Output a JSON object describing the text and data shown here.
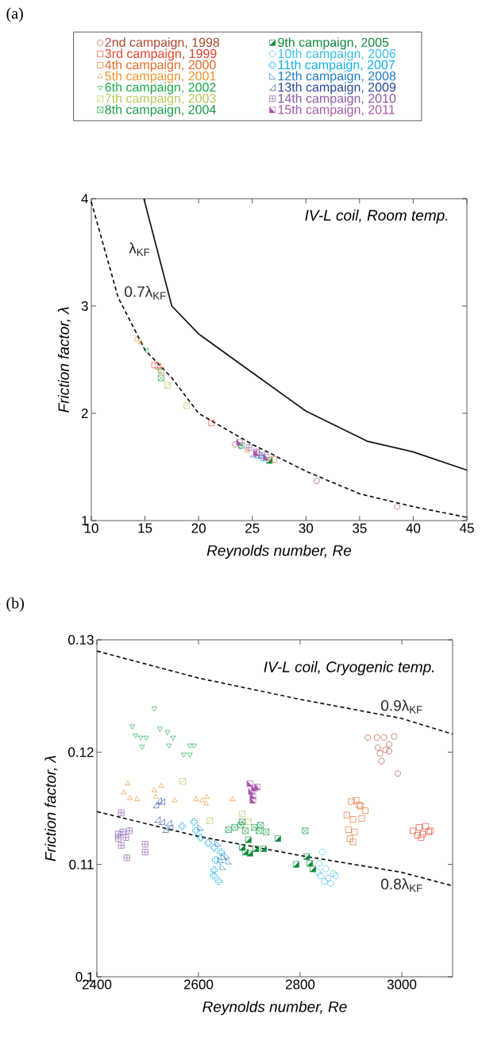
{
  "chart_data": [
    {
      "type": "scatter",
      "title": "(a)",
      "xlabel": "Reynolds number, Re",
      "ylabel": "Friction factor, λ",
      "annotations": [
        "IV-L coil, Room temp."
      ],
      "xlim": [
        10,
        45
      ],
      "ylim": [
        1,
        4
      ],
      "xticks": [
        10,
        15,
        20,
        25,
        30,
        35,
        40,
        45
      ],
      "yticks": [
        1,
        2,
        3,
        4
      ],
      "legend": "top",
      "series": [
        {
          "name": "2nd campaign, 1998",
          "color": "#a8452c",
          "marker": "circle",
          "x": [
            23.4,
            31.0,
            38.5
          ],
          "values": [
            1.71,
            1.37,
            1.13
          ]
        },
        {
          "name": "3rd campaign, 1999",
          "color": "#e0452a",
          "marker": "square",
          "x": [
            15.9,
            16.2,
            21.2
          ],
          "values": [
            2.45,
            2.44,
            1.91
          ]
        },
        {
          "name": "4th campaign, 2000",
          "color": "#e06c2a",
          "marker": "square",
          "x": [
            16.5,
            27.0
          ],
          "values": [
            2.4,
            1.57
          ]
        },
        {
          "name": "5th campaign, 2001",
          "color": "#f0922b",
          "marker": "triangle",
          "x": [
            14.2,
            14.6,
            24.5
          ],
          "values": [
            2.69,
            2.66,
            1.65
          ]
        },
        {
          "name": "6th campaign, 2002",
          "color": "#1aaa4a",
          "marker": "triangle",
          "x": [
            15.1,
            16.4,
            23.9
          ],
          "values": [
            2.59,
            2.4,
            1.69
          ]
        },
        {
          "name": "7th campaign, 2003",
          "color": "#b5c95a",
          "x": [
            17.1,
            18.9
          ],
          "values": [
            2.26,
            2.07
          ]
        },
        {
          "name": "8th campaign, 2004",
          "color": "#1a9a4a",
          "x": [
            16.5,
            24.0
          ],
          "values": [
            2.33,
            1.7
          ]
        },
        {
          "name": "9th campaign, 2005",
          "color": "#0f8a3c",
          "x": [
            26.6
          ],
          "values": [
            1.56
          ]
        },
        {
          "name": "10th campaign, 2006",
          "color": "#3cc0ea",
          "marker": "circle",
          "x": [
            26.1
          ],
          "values": [
            1.58
          ]
        },
        {
          "name": "11th campaign, 2007",
          "color": "#12aee6",
          "marker": "cross",
          "x": [
            25.9
          ],
          "values": [
            1.59
          ]
        },
        {
          "name": "12th campaign, 2008",
          "color": "#1a7cc4",
          "marker": "triangle",
          "x": [
            25.5
          ],
          "values": [
            1.61
          ]
        },
        {
          "name": "13th campaign, 2009",
          "color": "#2a4a9c",
          "marker": "triangle",
          "x": [
            25.1
          ],
          "values": [
            1.62
          ]
        },
        {
          "name": "14th campaign, 2010",
          "color": "#8a5aa8",
          "x": [
            24.7,
            25.4,
            25.9
          ],
          "values": [
            1.68,
            1.64,
            1.61
          ]
        },
        {
          "name": "15th campaign, 2011",
          "color": "#a85aa8",
          "x": [
            23.8,
            25.4,
            26.3
          ],
          "values": [
            1.73,
            1.63,
            1.59
          ]
        },
        {
          "name": "λ$_{KF}$",
          "type": "line",
          "color": "#111111",
          "line_style": "solid",
          "x": [
            14.9,
            17.5,
            20,
            24.3,
            30,
            35.7,
            40,
            45
          ],
          "values": [
            4.0,
            3.0,
            2.74,
            2.43,
            2.02,
            1.74,
            1.64,
            1.47
          ]
        },
        {
          "name": "0.7λ$_{KF}$",
          "type": "line",
          "color": "#111111",
          "line_style": "dashed",
          "x": [
            10,
            12.5,
            15,
            17.5,
            20,
            25,
            30,
            35,
            40,
            45
          ],
          "values": [
            3.97,
            3.08,
            2.59,
            2.33,
            2.0,
            1.71,
            1.46,
            1.25,
            1.13,
            1.03
          ]
        }
      ]
    },
    {
      "type": "scatter",
      "title": "(b)",
      "xlabel": "Reynolds number, Re",
      "ylabel": "Friction factor, λ",
      "annotations": [
        "IV-L coil, Cryogenic temp."
      ],
      "xlim": [
        2400,
        3100
      ],
      "ylim": [
        0.1,
        0.13
      ],
      "xticks": [
        2400,
        2600,
        2800,
        3000
      ],
      "yticks": [
        0.1,
        0.11,
        0.12,
        0.13
      ],
      "series": [
        {
          "color": "#a8452c",
          "marker": "circle",
          "x": [
            2933,
            2951,
            2965,
            2985,
            2953,
            2975,
            2968,
            2957,
            2975,
            2960,
            2992
          ],
          "values": [
            0.1213,
            0.1213,
            0.1213,
            0.1214,
            0.1204,
            0.1207,
            0.1202,
            0.1199,
            0.1201,
            0.1192,
            0.1181
          ]
        },
        {
          "color": "#e0452a",
          "marker": "square",
          "x": [
            3022,
            3034,
            3047,
            3041,
            3053,
            3031,
            3056,
            3038
          ],
          "values": [
            0.113,
            0.1133,
            0.1134,
            0.1127,
            0.1129,
            0.1126,
            0.113,
            0.1124
          ]
        },
        {
          "color": "#e06c2a",
          "marker": "square",
          "x": [
            2901,
            2910,
            2919,
            2928,
            2892,
            2904,
            2921,
            2895,
            2907,
            2898,
            2904,
            2916
          ],
          "values": [
            0.1156,
            0.1157,
            0.1152,
            0.1148,
            0.1144,
            0.114,
            0.1141,
            0.1131,
            0.1129,
            0.1123,
            0.112,
            0.1153
          ]
        },
        {
          "color": "#f0922b",
          "marker": "triangle",
          "x": [
            2461,
            2453,
            2465,
            2479,
            2513,
            2527,
            2516,
            2553,
            2595,
            2607,
            2616,
            2615,
            2667
          ],
          "values": [
            0.1172,
            0.1164,
            0.1159,
            0.1158,
            0.1166,
            0.117,
            0.116,
            0.1157,
            0.1158,
            0.1157,
            0.116,
            0.1154,
            0.1158
          ]
        },
        {
          "color": "#1aaa4a",
          "marker": "triangle",
          "x": [
            2470,
            2476,
            2486,
            2489,
            2497,
            2513,
            2524,
            2539,
            2550,
            2542,
            2571,
            2583,
            2591,
            2583
          ],
          "values": [
            0.1223,
            0.1215,
            0.1213,
            0.1205,
            0.1213,
            0.1239,
            0.1221,
            0.1218,
            0.1213,
            0.1206,
            0.1198,
            0.1206,
            0.1206,
            0.1198
          ]
        },
        {
          "color": "#b5c95a",
          "x": [
            2569,
            2622,
            2686,
            2698
          ],
          "values": [
            0.1174,
            0.1139,
            0.1145,
            0.1138
          ]
        },
        {
          "color": "#1a9a4a",
          "x": [
            2659,
            2671,
            2683,
            2692,
            2686,
            2710,
            2722,
            2719,
            2733,
            2810
          ],
          "values": [
            0.1131,
            0.1133,
            0.1135,
            0.113,
            0.1138,
            0.1133,
            0.1135,
            0.113,
            0.1129,
            0.113
          ]
        },
        {
          "color": "#0f8a3c",
          "x": [
            2686,
            2698,
            2692,
            2701,
            2713,
            2728,
            2756,
            2792,
            2813,
            2819,
            2825
          ],
          "values": [
            0.1115,
            0.1122,
            0.1111,
            0.111,
            0.1114,
            0.1114,
            0.1123,
            0.11,
            0.1107,
            0.1101,
            0.1096
          ]
        },
        {
          "color": "#3cc0ea",
          "marker": "circle",
          "x": [
            2844,
            2838,
            2850,
            2840,
            2855,
            2865,
            2848,
            2860,
            2835,
            2870
          ],
          "values": [
            0.1111,
            0.1101,
            0.1096,
            0.109,
            0.1088,
            0.1092,
            0.1085,
            0.1083,
            0.1093,
            0.109
          ]
        },
        {
          "color": "#12aee6",
          "marker": "cross",
          "x": [
            2568,
            2591,
            2595,
            2604,
            2619,
            2631,
            2634,
            2644,
            2631,
            2640,
            2630
          ],
          "values": [
            0.1134,
            0.1138,
            0.113,
            0.1124,
            0.1119,
            0.1115,
            0.1104,
            0.1111,
            0.1095,
            0.1085,
            0.109
          ]
        },
        {
          "color": "#1a7cc4",
          "marker": "triangle",
          "x": [
            2604,
            2638,
            2650,
            2659,
            2644,
            2656,
            2648
          ],
          "values": [
            0.1133,
            0.1119,
            0.1107,
            0.1103,
            0.1104,
            0.1108,
            0.1098
          ]
        },
        {
          "color": "#2a4a9c",
          "marker": "triangle",
          "x": [
            2516,
            2522,
            2528,
            2519,
            2528,
            2541,
            2535,
            2544
          ],
          "values": [
            0.1153,
            0.1157,
            0.1156,
            0.114,
            0.1138,
            0.1137,
            0.1131,
            0.1133
          ]
        },
        {
          "color": "#8a5aa8",
          "x": [
            2448,
            2442,
            2451,
            2457,
            2464,
            2448,
            2459,
            2495,
            2495,
            2442
          ],
          "values": [
            0.1146,
            0.1127,
            0.1129,
            0.1124,
            0.113,
            0.1117,
            0.1106,
            0.1118,
            0.1111,
            0.1123
          ]
        },
        {
          "color": "#a85aa8",
          "x": [
            2701,
            2710,
            2704,
            2707,
            2716,
            2707
          ],
          "values": [
            0.1172,
            0.1168,
            0.1165,
            0.1161,
            0.1169,
            0.1157
          ]
        },
        {
          "name": "0.9λ$_{KF}$",
          "type": "line",
          "color": "#111111",
          "line_style": "dashed",
          "x": [
            2400,
            2600,
            2800,
            3000,
            3100
          ],
          "values": [
            0.129,
            0.1266,
            0.1247,
            0.123,
            0.1216
          ]
        },
        {
          "name": "0.8λ$_{KF}$",
          "type": "line",
          "color": "#111111",
          "line_style": "dashed",
          "x": [
            2400,
            2600,
            2800,
            3000,
            3100
          ],
          "values": [
            0.1147,
            0.1125,
            0.1108,
            0.1093,
            0.1081
          ]
        }
      ]
    }
  ]
}
